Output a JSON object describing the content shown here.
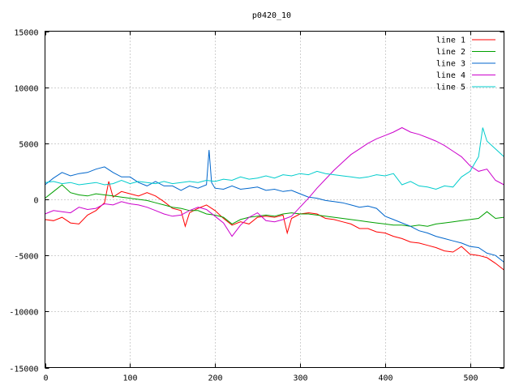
{
  "chart_data": {
    "type": "line",
    "title": "p0420_10",
    "xlabel": "",
    "ylabel": "",
    "xlim": [
      0,
      540
    ],
    "ylim": [
      -15000,
      15000
    ],
    "x_ticks": [
      0,
      100,
      200,
      300,
      400,
      500
    ],
    "y_ticks": [
      -15000,
      -10000,
      -5000,
      0,
      5000,
      10000,
      15000
    ],
    "grid": true,
    "legend_position": "top-right",
    "series": [
      {
        "name": "line 1",
        "color": "#ff0000",
        "x": [
          0,
          10,
          20,
          30,
          40,
          50,
          60,
          70,
          75,
          80,
          90,
          100,
          110,
          120,
          130,
          140,
          150,
          160,
          165,
          170,
          180,
          190,
          200,
          210,
          220,
          230,
          240,
          250,
          260,
          270,
          280,
          285,
          290,
          300,
          310,
          320,
          330,
          340,
          350,
          360,
          370,
          380,
          390,
          400,
          410,
          420,
          430,
          440,
          450,
          460,
          470,
          480,
          490,
          500,
          510,
          520,
          530,
          540
        ],
        "y": [
          -1800,
          -1900,
          -1600,
          -2100,
          -2200,
          -1400,
          -1000,
          -300,
          1600,
          200,
          700,
          500,
          300,
          600,
          300,
          -200,
          -800,
          -1000,
          -2400,
          -1200,
          -800,
          -500,
          -1000,
          -1700,
          -2300,
          -2000,
          -2200,
          -1600,
          -1500,
          -1600,
          -1400,
          -3000,
          -1700,
          -1300,
          -1200,
          -1300,
          -1700,
          -1800,
          -2000,
          -2200,
          -2600,
          -2600,
          -2900,
          -3000,
          -3300,
          -3500,
          -3800,
          -3900,
          -4100,
          -4300,
          -4600,
          -4700,
          -4200,
          -4900,
          -5000,
          -5200,
          -5700,
          -6300
        ]
      },
      {
        "name": "line 2",
        "color": "#00a000",
        "x": [
          0,
          10,
          20,
          30,
          40,
          50,
          60,
          70,
          80,
          90,
          100,
          110,
          120,
          130,
          140,
          150,
          160,
          170,
          180,
          190,
          200,
          210,
          220,
          230,
          240,
          250,
          260,
          270,
          280,
          290,
          300,
          310,
          320,
          330,
          340,
          350,
          360,
          370,
          380,
          390,
          400,
          410,
          420,
          430,
          440,
          450,
          460,
          470,
          480,
          490,
          500,
          510,
          520,
          530,
          540
        ],
        "y": [
          100,
          700,
          1300,
          600,
          400,
          300,
          500,
          400,
          300,
          200,
          100,
          0,
          -100,
          -300,
          -500,
          -700,
          -800,
          -1000,
          -1000,
          -1300,
          -1400,
          -1600,
          -2200,
          -1800,
          -1600,
          -1500,
          -1400,
          -1500,
          -1300,
          -1200,
          -1300,
          -1300,
          -1400,
          -1500,
          -1600,
          -1700,
          -1800,
          -1900,
          -2000,
          -2100,
          -2200,
          -2300,
          -2300,
          -2400,
          -2300,
          -2400,
          -2200,
          -2100,
          -2000,
          -1900,
          -1800,
          -1700,
          -1100,
          -1700,
          -1600
        ]
      },
      {
        "name": "line 3",
        "color": "#0066cc",
        "x": [
          0,
          10,
          20,
          30,
          40,
          50,
          60,
          70,
          80,
          90,
          100,
          110,
          120,
          130,
          140,
          150,
          160,
          170,
          180,
          190,
          193,
          196,
          200,
          210,
          220,
          230,
          240,
          250,
          260,
          270,
          280,
          290,
          300,
          310,
          320,
          330,
          340,
          350,
          360,
          370,
          380,
          390,
          400,
          410,
          420,
          430,
          440,
          450,
          460,
          470,
          480,
          490,
          500,
          510,
          520,
          530,
          540
        ],
        "y": [
          1300,
          1900,
          2400,
          2100,
          2300,
          2400,
          2700,
          2900,
          2400,
          2000,
          2000,
          1500,
          1200,
          1600,
          1200,
          1200,
          800,
          1200,
          1000,
          1300,
          4400,
          1500,
          1000,
          900,
          1200,
          900,
          1000,
          1100,
          800,
          900,
          700,
          800,
          500,
          200,
          100,
          -100,
          -200,
          -300,
          -500,
          -700,
          -600,
          -800,
          -1500,
          -1800,
          -2100,
          -2400,
          -2800,
          -3000,
          -3300,
          -3500,
          -3700,
          -3900,
          -4200,
          -4300,
          -4800,
          -5000,
          -5600
        ]
      },
      {
        "name": "line 4",
        "color": "#cc00cc",
        "x": [
          0,
          10,
          20,
          30,
          40,
          50,
          60,
          70,
          80,
          90,
          100,
          110,
          120,
          130,
          140,
          150,
          160,
          170,
          180,
          190,
          200,
          210,
          220,
          230,
          240,
          250,
          260,
          270,
          280,
          290,
          300,
          310,
          320,
          330,
          340,
          350,
          360,
          370,
          380,
          390,
          400,
          410,
          420,
          430,
          440,
          450,
          460,
          470,
          480,
          490,
          500,
          510,
          520,
          530,
          540
        ],
        "y": [
          -1300,
          -1000,
          -1100,
          -1200,
          -700,
          -900,
          -800,
          -400,
          -500,
          -200,
          -400,
          -500,
          -700,
          -1000,
          -1300,
          -1500,
          -1400,
          -1000,
          -700,
          -900,
          -1500,
          -2100,
          -3300,
          -2300,
          -1600,
          -1200,
          -1900,
          -2000,
          -1800,
          -1500,
          -700,
          100,
          1000,
          1800,
          2600,
          3300,
          4000,
          4500,
          5000,
          5400,
          5700,
          6000,
          6400,
          6000,
          5800,
          5500,
          5200,
          4800,
          4300,
          3800,
          3000,
          2500,
          2700,
          1700,
          1300
        ]
      },
      {
        "name": "line 5",
        "color": "#00cccc",
        "x": [
          0,
          10,
          20,
          30,
          40,
          50,
          60,
          70,
          80,
          90,
          100,
          110,
          120,
          130,
          140,
          150,
          160,
          170,
          180,
          190,
          200,
          210,
          220,
          230,
          240,
          250,
          260,
          270,
          280,
          290,
          300,
          310,
          320,
          330,
          340,
          350,
          360,
          370,
          380,
          390,
          400,
          410,
          420,
          430,
          440,
          450,
          460,
          470,
          480,
          490,
          500,
          510,
          515,
          520,
          530,
          540
        ],
        "y": [
          1500,
          1600,
          1400,
          1500,
          1300,
          1400,
          1500,
          1300,
          1400,
          1700,
          1400,
          1600,
          1500,
          1400,
          1600,
          1400,
          1500,
          1600,
          1500,
          1700,
          1600,
          1800,
          1700,
          2000,
          1800,
          1900,
          2100,
          1900,
          2200,
          2100,
          2300,
          2200,
          2500,
          2300,
          2200,
          2100,
          2000,
          1900,
          2000,
          2200,
          2100,
          2300,
          1300,
          1600,
          1200,
          1100,
          900,
          1200,
          1100,
          2000,
          2500,
          3800,
          6400,
          5200,
          4500,
          3800
        ]
      }
    ]
  }
}
